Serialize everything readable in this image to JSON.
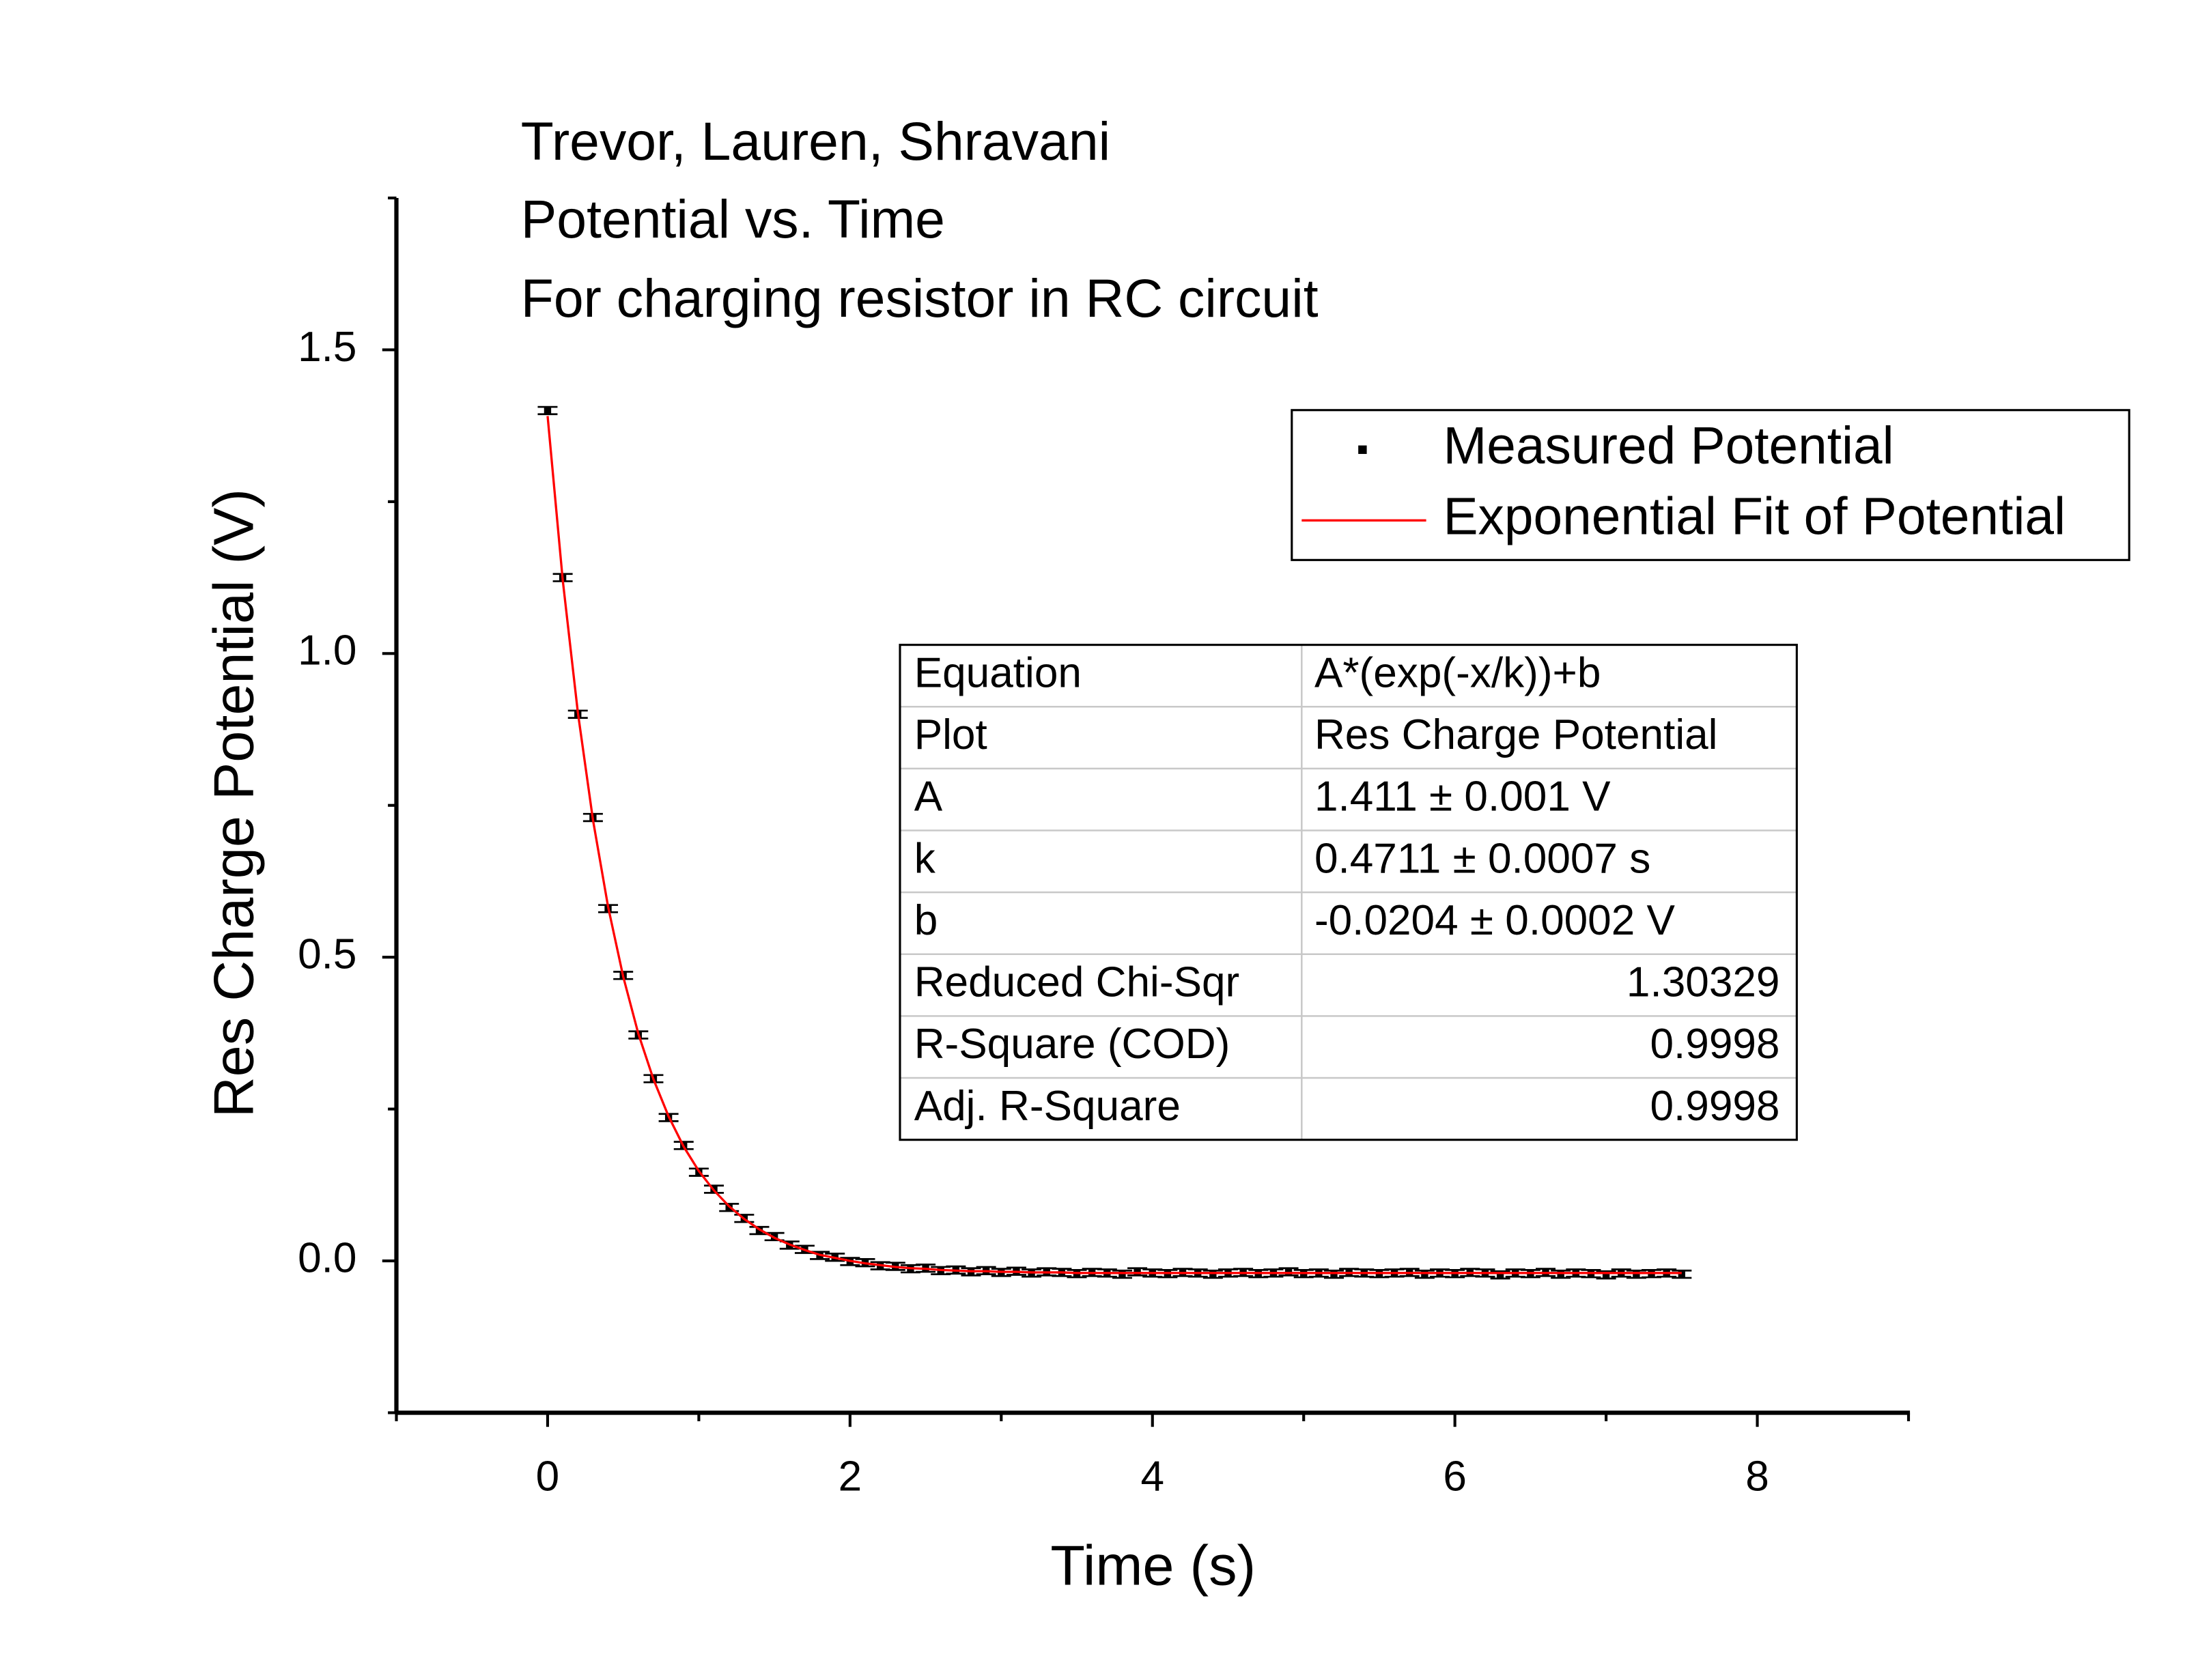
{
  "chart_data": {
    "type": "scatter",
    "title": [
      "Trevor, Lauren, Shravani",
      "Potential vs. Time",
      "For charging resistor in RC circuit"
    ],
    "x_label": "Time (s)",
    "y_label": "Res Charge Potential (V)",
    "xlim": [
      -1,
      9
    ],
    "xticks": [
      0,
      2,
      4,
      6,
      8
    ],
    "xminorticks": [
      -1,
      1,
      3,
      5,
      7,
      9
    ],
    "ylim": [
      -0.25,
      1.75
    ],
    "yticks": [
      {
        "value": 0,
        "label": "0.0"
      },
      0.5,
      {
        "value": 1,
        "label": "1.0"
      },
      1.5
    ],
    "yminorticks": [
      -0.25,
      0.25,
      0.75,
      1.25,
      1.75
    ],
    "x": [
      0,
      0.1,
      0.2,
      0.3,
      0.4,
      0.5,
      0.6,
      0.7,
      0.8,
      0.9,
      1,
      1.1,
      1.2,
      1.3,
      1.4,
      1.5,
      1.6,
      1.7,
      1.8,
      1.9,
      2,
      2.1,
      2.2,
      2.3,
      2.4,
      2.5,
      2.6,
      2.7,
      2.8,
      2.9,
      3,
      3.1,
      3.2,
      3.3,
      3.4,
      3.5,
      3.6,
      3.7,
      3.8,
      3.9,
      4,
      4.1,
      4.2,
      4.3,
      4.4,
      4.5,
      4.6,
      4.7,
      4.8,
      4.9,
      5,
      5.1,
      5.2,
      5.3,
      5.4,
      5.5,
      5.6,
      5.7,
      5.8,
      5.9,
      6,
      6.1,
      6.2,
      6.3,
      6.4,
      6.5,
      6.6,
      6.7,
      6.8,
      6.9,
      7,
      7.1,
      7.2,
      7.3,
      7.4,
      7.5
    ],
    "series": [
      {
        "name": "Measured Potential",
        "color": "#000000",
        "kind": "scatter",
        "y_error": 0.006,
        "values": [
          1.4,
          1.125,
          0.9,
          0.73,
          0.58,
          0.47,
          0.372,
          0.3,
          0.236,
          0.19,
          0.146,
          0.118,
          0.088,
          0.07,
          0.05,
          0.04,
          0.026,
          0.019,
          0.009,
          0.006,
          -0.001,
          -0.003,
          -0.008,
          -0.009,
          -0.013,
          -0.012,
          -0.016,
          -0.015,
          -0.018,
          -0.016,
          -0.019,
          -0.017,
          -0.02,
          -0.018,
          -0.019,
          -0.021,
          -0.019,
          -0.02,
          -0.022,
          -0.018,
          -0.02,
          -0.021,
          -0.019,
          -0.02,
          -0.022,
          -0.02,
          -0.019,
          -0.021,
          -0.02,
          -0.018,
          -0.021,
          -0.02,
          -0.022,
          -0.019,
          -0.02,
          -0.021,
          -0.02,
          -0.019,
          -0.022,
          -0.02,
          -0.021,
          -0.019,
          -0.02,
          -0.023,
          -0.02,
          -0.021,
          -0.019,
          -0.022,
          -0.02,
          -0.021,
          -0.023,
          -0.02,
          -0.022,
          -0.021,
          -0.02,
          -0.022
        ]
      },
      {
        "name": "Exponential Fit of Potential",
        "color": "#ff0000",
        "kind": "line",
        "values": [
          1.391,
          1.121,
          0.903,
          0.726,
          0.583,
          0.468,
          0.374,
          0.299,
          0.238,
          0.188,
          0.148,
          0.116,
          0.09,
          0.069,
          0.052,
          0.038,
          0.027,
          0.018,
          0.01,
          0.005,
          0.0,
          -0.004,
          -0.007,
          -0.01,
          -0.012,
          -0.013,
          -0.015,
          -0.016,
          -0.017,
          -0.017,
          -0.018,
          -0.018,
          -0.019,
          -0.019,
          -0.019,
          -0.02,
          -0.02,
          -0.02,
          -0.02,
          -0.02,
          -0.02,
          -0.02,
          -0.02,
          -0.02,
          -0.02,
          -0.02,
          -0.02,
          -0.02,
          -0.02,
          -0.02,
          -0.02,
          -0.02,
          -0.02,
          -0.02,
          -0.02,
          -0.02,
          -0.02,
          -0.02,
          -0.02,
          -0.02,
          -0.02,
          -0.02,
          -0.02,
          -0.02,
          -0.02,
          -0.02,
          -0.02,
          -0.02,
          -0.02,
          -0.02,
          -0.02,
          -0.02,
          -0.02,
          -0.02,
          -0.02,
          -0.02
        ]
      }
    ],
    "fit_table": {
      "rows": [
        [
          "Equation",
          "A*(exp(-x/k))+b"
        ],
        [
          "Plot",
          "Res Charge Potential"
        ],
        [
          "A",
          "1.411 ± 0.001 V"
        ],
        [
          "k",
          "0.4711 ± 0.0007 s"
        ],
        [
          "b",
          "-0.0204 ± 0.0002 V"
        ],
        [
          "Reduced Chi-Sqr",
          "1.30329"
        ],
        [
          "R-Square (COD)",
          "0.9998"
        ],
        [
          "Adj. R-Square",
          "0.9998"
        ]
      ]
    }
  }
}
